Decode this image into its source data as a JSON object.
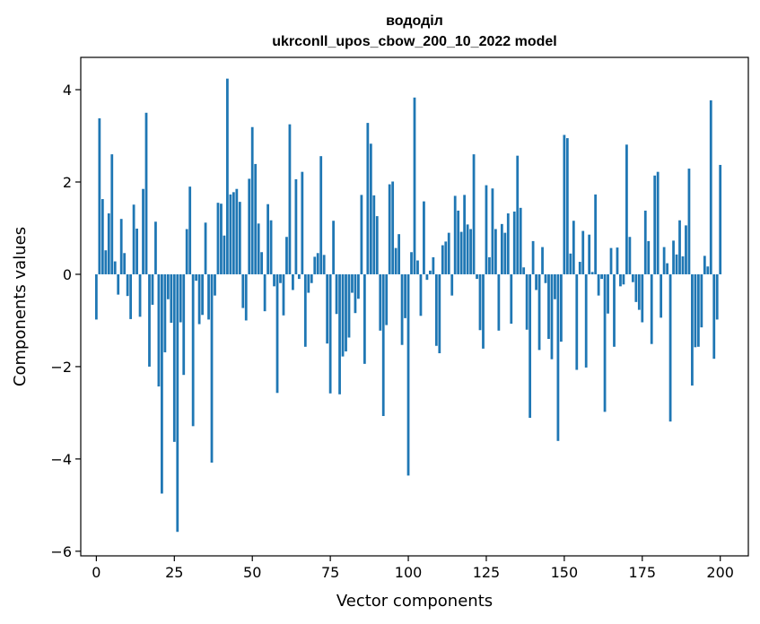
{
  "chart_data": {
    "type": "bar",
    "title_lines": [
      "вододіл",
      "ukrconll_upos_cbow_200_10_2022 model"
    ],
    "xlabel": "Vector components",
    "ylabel": "Components values",
    "xlim": [
      -5,
      209
    ],
    "ylim": [
      -6.1,
      4.7
    ],
    "xticks": [
      0,
      25,
      50,
      75,
      100,
      125,
      150,
      175,
      200
    ],
    "yticks": [
      -6,
      -4,
      -2,
      0,
      2,
      4
    ],
    "ytick_labels": [
      "−6",
      "−4",
      "−2",
      "0",
      "2",
      "4"
    ],
    "grid": false,
    "color": "#1f77b4",
    "values": [
      -0.98,
      3.38,
      1.63,
      0.52,
      1.32,
      2.6,
      0.28,
      -0.44,
      1.2,
      0.46,
      -0.47,
      -0.97,
      1.51,
      0.99,
      -0.92,
      1.85,
      3.5,
      -2.0,
      -0.66,
      1.14,
      -2.43,
      -4.75,
      -1.69,
      -0.54,
      -1.05,
      -3.63,
      -5.58,
      -1.04,
      -2.18,
      0.98,
      1.9,
      -3.29,
      -0.14,
      -1.08,
      -0.88,
      1.12,
      -0.98,
      -4.08,
      -0.46,
      1.55,
      1.53,
      0.84,
      4.24,
      1.73,
      1.78,
      1.85,
      1.57,
      -0.73,
      -1.0,
      2.07,
      3.19,
      2.39,
      1.1,
      0.48,
      -0.8,
      1.52,
      1.17,
      -0.26,
      -2.57,
      -0.19,
      -0.89,
      0.81,
      3.25,
      -0.34,
      2.06,
      -0.1,
      2.22,
      -1.57,
      -0.4,
      -0.19,
      0.38,
      0.46,
      2.56,
      0.42,
      -1.5,
      -2.58,
      1.16,
      -0.86,
      -2.6,
      -1.78,
      -1.67,
      -1.37,
      -0.4,
      -0.84,
      -0.53,
      1.72,
      -1.94,
      3.28,
      2.83,
      1.71,
      1.26,
      -1.22,
      -3.07,
      -1.1,
      1.95,
      2.01,
      0.57,
      0.87,
      -1.53,
      -0.95,
      -4.36,
      0.48,
      3.83,
      0.3,
      -0.9,
      1.58,
      -0.12,
      0.08,
      0.37,
      -1.55,
      -1.71,
      0.63,
      0.71,
      0.9,
      -0.46,
      1.7,
      1.38,
      0.92,
      1.72,
      1.08,
      0.98,
      2.6,
      -0.1,
      -1.21,
      -1.61,
      1.93,
      0.37,
      1.86,
      0.98,
      -1.22,
      1.09,
      0.9,
      1.32,
      -1.07,
      1.36,
      2.57,
      1.44,
      0.15,
      -1.2,
      -3.11,
      0.72,
      -0.34,
      -1.64,
      0.59,
      -0.19,
      -1.4,
      -1.84,
      -0.54,
      -3.61,
      -1.46,
      3.02,
      2.95,
      0.45,
      1.16,
      -2.07,
      0.27,
      0.94,
      -2.02,
      0.86,
      0.05,
      1.73,
      -0.46,
      -0.1,
      -2.98,
      -0.85,
      0.57,
      -1.57,
      0.58,
      -0.26,
      -0.22,
      2.81,
      0.81,
      -0.17,
      -0.6,
      -0.77,
      -1.04,
      1.38,
      0.72,
      -1.51,
      2.14,
      2.22,
      -0.94,
      0.59,
      0.24,
      -3.19,
      0.73,
      0.43,
      1.17,
      0.39,
      1.06,
      2.29,
      -2.41,
      -1.58,
      -1.57,
      -1.15,
      0.4,
      0.17,
      3.77,
      -1.83,
      -0.98,
      2.37
    ]
  }
}
